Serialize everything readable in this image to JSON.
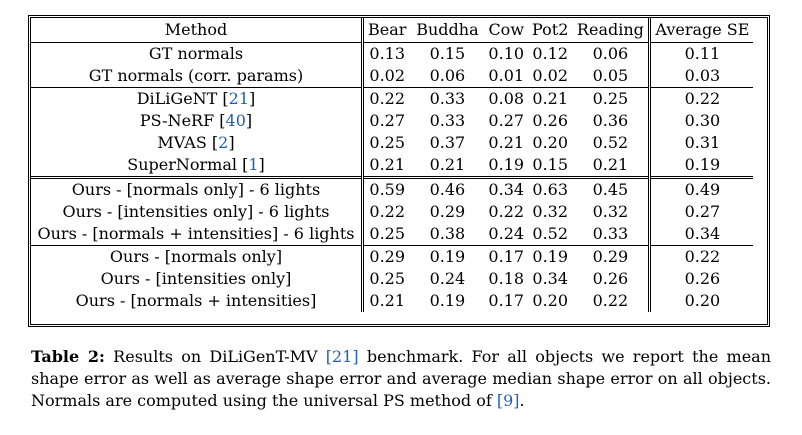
{
  "table": {
    "headers": [
      "Method",
      "Bear",
      "Buddha",
      "Cow",
      "Pot2",
      "Reading",
      "Average SE"
    ],
    "groups": [
      {
        "rows": [
          {
            "method": "GT normals",
            "cite": "",
            "values": [
              "0.13",
              "0.15",
              "0.10",
              "0.12",
              "0.06",
              "0.11"
            ]
          },
          {
            "method": "GT normals (corr. params)",
            "cite": "",
            "values": [
              "0.02",
              "0.06",
              "0.01",
              "0.02",
              "0.05",
              "0.03"
            ]
          }
        ]
      },
      {
        "rows": [
          {
            "method": "DiLiGeNT",
            "cite": "21",
            "values": [
              "0.22",
              "0.33",
              "0.08",
              "0.21",
              "0.25",
              "0.22"
            ]
          },
          {
            "method": "PS-NeRF",
            "cite": "40",
            "values": [
              "0.27",
              "0.33",
              "0.27",
              "0.26",
              "0.36",
              "0.30"
            ]
          },
          {
            "method": "MVAS",
            "cite": "2",
            "values": [
              "0.25",
              "0.37",
              "0.21",
              "0.20",
              "0.52",
              "0.31"
            ]
          },
          {
            "method": "SuperNormal",
            "cite": "1",
            "values": [
              "0.21",
              "0.21",
              "0.19",
              "0.15",
              "0.21",
              "0.19"
            ]
          }
        ]
      },
      {
        "rows": [
          {
            "method": "Ours - [normals only] - 6 lights",
            "cite": "",
            "values": [
              "0.59",
              "0.46",
              "0.34",
              "0.63",
              "0.45",
              "0.49"
            ]
          },
          {
            "method": "Ours - [intensities only] - 6 lights",
            "cite": "",
            "values": [
              "0.22",
              "0.29",
              "0.22",
              "0.32",
              "0.32",
              "0.27"
            ]
          },
          {
            "method": "Ours - [normals + intensities] - 6 lights",
            "cite": "",
            "values": [
              "0.25",
              "0.38",
              "0.24",
              "0.52",
              "0.33",
              "0.34"
            ]
          }
        ]
      },
      {
        "rows": [
          {
            "method": "Ours - [normals only]",
            "cite": "",
            "values": [
              "0.29",
              "0.19",
              "0.17",
              "0.19",
              "0.29",
              "0.22"
            ]
          },
          {
            "method": "Ours - [intensities only]",
            "cite": "",
            "values": [
              "0.25",
              "0.24",
              "0.18",
              "0.34",
              "0.26",
              "0.26"
            ]
          },
          {
            "method": "Ours - [normals + intensities]",
            "cite": "",
            "values": [
              "0.21",
              "0.19",
              "0.17",
              "0.20",
              "0.22",
              "0.20"
            ]
          }
        ]
      }
    ]
  },
  "caption": {
    "label": "Table 2:",
    "text_1": " Results on DiLiGenT-MV ",
    "cite_1": "[21]",
    "text_2": " benchmark. For all objects we report the mean shape error as well as average shape error and average median shape error on all objects. Normals are computed using the universal PS method of ",
    "cite_2": "[9]",
    "text_3": "."
  },
  "colors": {
    "citation": "#1f5fb4",
    "text": "#000000"
  }
}
